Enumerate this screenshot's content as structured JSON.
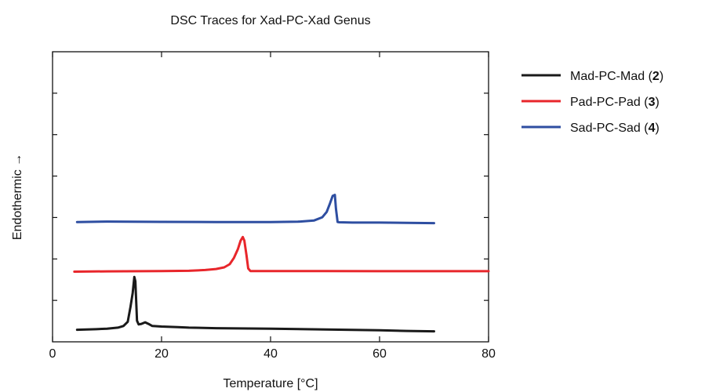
{
  "chart_data": {
    "type": "line",
    "title": "DSC Traces for Xad-PC-Xad Genus",
    "xlabel": "Temperature [°C]",
    "ylabel": "Endothermic →",
    "xlim": [
      0,
      80
    ],
    "ylim": [
      0,
      1
    ],
    "xticks": [
      0,
      20,
      40,
      60,
      80
    ],
    "yticks_unlabeled": true,
    "grid": false,
    "legend_position": "right",
    "series": [
      {
        "name": "Mad-PC-Mad",
        "num": "2",
        "color": "#1a1a1a",
        "x": [
          4.5,
          8,
          10,
          12,
          13,
          13.8,
          14.3,
          14.7,
          15.0,
          15.2,
          15.5,
          15.8,
          16.3,
          17.0,
          17.6,
          18.3,
          20,
          23,
          25,
          30,
          40,
          50,
          60,
          65,
          70
        ],
        "y": [
          0.025,
          0.03,
          0.035,
          0.045,
          0.06,
          0.1,
          0.24,
          0.37,
          0.52,
          0.48,
          0.11,
          0.075,
          0.08,
          0.095,
          0.08,
          0.06,
          0.055,
          0.05,
          0.045,
          0.04,
          0.035,
          0.028,
          0.02,
          0.014,
          0.01
        ]
      },
      {
        "name": "Pad-PC-Pad",
        "num": "3",
        "color": "#e8262b",
        "x": [
          4,
          10,
          20,
          25,
          28,
          30,
          31.5,
          32.5,
          33.3,
          34.0,
          34.5,
          34.9,
          35.2,
          35.6,
          35.9,
          36.3,
          40,
          50,
          60,
          70,
          80
        ],
        "y": [
          0.57,
          0.573,
          0.575,
          0.578,
          0.585,
          0.595,
          0.61,
          0.64,
          0.7,
          0.78,
          0.86,
          0.895,
          0.86,
          0.72,
          0.6,
          0.576,
          0.575,
          0.575,
          0.574,
          0.574,
          0.574
        ]
      },
      {
        "name": "Sad-PC-Sad",
        "num": "4",
        "color": "#2e4ea1",
        "x": [
          4.5,
          10,
          20,
          30,
          40,
          45,
          48,
          49.5,
          50.3,
          50.9,
          51.4,
          51.8,
          52.0,
          52.3,
          52.6,
          55,
          60,
          65,
          70
        ],
        "y": [
          1.035,
          1.04,
          1.037,
          1.035,
          1.035,
          1.038,
          1.05,
          1.08,
          1.13,
          1.21,
          1.28,
          1.29,
          1.16,
          1.035,
          1.033,
          1.03,
          1.03,
          1.028,
          1.025
        ]
      }
    ]
  }
}
